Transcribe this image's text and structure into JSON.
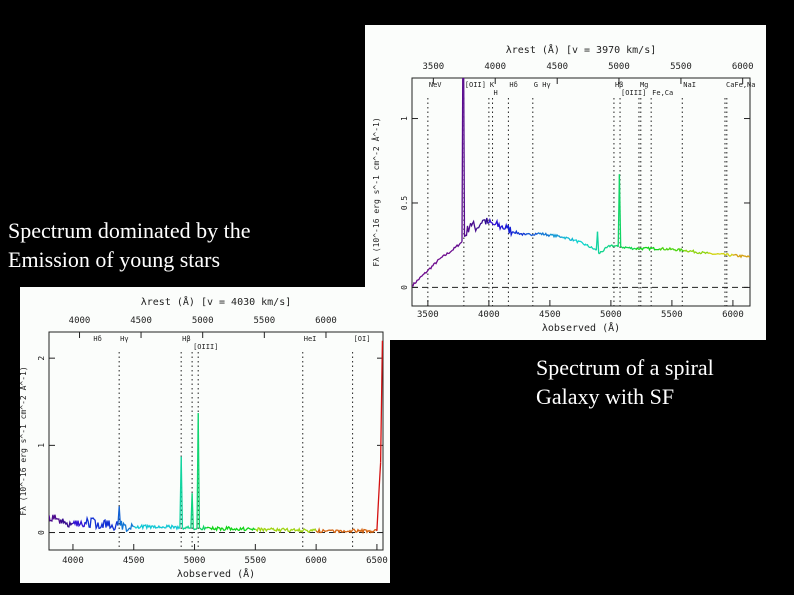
{
  "captions": {
    "top_left": [
      "Spectrum dominated by the",
      "Emission of young stars"
    ],
    "bottom_right": [
      "Spectrum of a spiral",
      "Galaxy with SF"
    ]
  },
  "chart_data": [
    {
      "type": "line",
      "title": "λrest (Å) [v = 3970 km/s]",
      "xlabel": "λobserved (Å)",
      "ylabel": "Fλ (10^-16 erg s^-1 cm^-2 Å^-1)",
      "xlim": [
        3370,
        6140
      ],
      "ylim": [
        -0.11,
        1.24
      ],
      "x_ticks": [
        "3500",
        "4000",
        "4500",
        "5000",
        "5500",
        "6000"
      ],
      "x_tick_values": [
        3500,
        4000,
        4500,
        5000,
        5500,
        6000
      ],
      "top_ticks": [
        "3500",
        "4000",
        "4500",
        "5000",
        "5500",
        "6000"
      ],
      "top_tick_values": [
        3545,
        4052,
        4560,
        5066,
        5574,
        6080
      ],
      "y_ticks": [
        "0",
        "0.5",
        "1"
      ],
      "y_tick_values": [
        0,
        0.5,
        1
      ],
      "zero_line": true,
      "lines": [
        {
          "x": 3500,
          "label": "NeV"
        },
        {
          "x": 3795,
          "label": "[OII]"
        },
        {
          "x": 4000,
          "label": "K"
        },
        {
          "x": 4030,
          "label": "H"
        },
        {
          "x": 4160,
          "label": "Hδ"
        },
        {
          "x": 4360,
          "label": "G Hγ"
        },
        {
          "x": 5025,
          "label": "Hβ"
        },
        {
          "x": 5075,
          "label": "[OIII]"
        },
        {
          "x": 5230,
          "label": "Mg"
        },
        {
          "x": 5245,
          "label": ""
        },
        {
          "x": 5330,
          "label": "Fe,Ca"
        },
        {
          "x": 5585,
          "label": "NaI"
        },
        {
          "x": 5935,
          "label": "CaFe,Na"
        },
        {
          "x": 5950,
          "label": ""
        }
      ],
      "x": [
        3370,
        3500,
        3600,
        3700,
        3780,
        3790,
        3800,
        3850,
        3900,
        3950,
        4000,
        4050,
        4100,
        4150,
        4200,
        4300,
        4400,
        4500,
        4600,
        4700,
        4800,
        4880,
        4890,
        4900,
        5000,
        5060,
        5070,
        5080,
        5200,
        5400,
        5600,
        5800,
        6000,
        6140
      ],
      "y": [
        0.01,
        0.1,
        0.17,
        0.22,
        0.27,
        1.85,
        0.3,
        0.38,
        0.35,
        0.4,
        0.38,
        0.37,
        0.36,
        0.35,
        0.33,
        0.31,
        0.32,
        0.31,
        0.3,
        0.28,
        0.25,
        0.22,
        0.33,
        0.2,
        0.25,
        0.24,
        0.67,
        0.24,
        0.23,
        0.23,
        0.22,
        0.2,
        0.19,
        0.18
      ]
    },
    {
      "type": "line",
      "title": "λrest (Å) [v = 4030 km/s]",
      "xlabel": "λobserved (Å)",
      "ylabel": "Fλ (10^-16 erg s^-1 cm^-2 Å^-1)",
      "xlim": [
        3803,
        6550
      ],
      "ylim": [
        -0.2,
        2.3
      ],
      "x_ticks": [
        "4000",
        "4500",
        "5000",
        "5500",
        "6000",
        "6500"
      ],
      "x_tick_values": [
        4000,
        4500,
        5000,
        5500,
        6000,
        6500
      ],
      "top_ticks": [
        "4000",
        "4500",
        "5000",
        "5500",
        "6000"
      ],
      "top_tick_values": [
        4054,
        4560,
        5067,
        5574,
        6081
      ],
      "y_ticks": [
        "0",
        "1",
        "2"
      ],
      "y_tick_values": [
        0,
        1,
        2
      ],
      "zero_line": true,
      "lines": [
        {
          "x": 4160,
          "label": "Hδ",
          "dotted": false
        },
        {
          "x": 4380,
          "label": "Hγ"
        },
        {
          "x": 4890,
          "label": "Hβ"
        },
        {
          "x": 4980,
          "label": "[OIII]"
        },
        {
          "x": 5030,
          "label": ""
        },
        {
          "x": 5890,
          "label": "HeI"
        },
        {
          "x": 6300,
          "label": "[OI]"
        }
      ],
      "x": [
        3803,
        3900,
        4000,
        4100,
        4370,
        4380,
        4390,
        4500,
        4880,
        4890,
        4900,
        4970,
        4980,
        4990,
        5020,
        5030,
        5040,
        5100,
        5500,
        6000,
        6500,
        6530,
        6545
      ],
      "y": [
        0.2,
        0.15,
        0.1,
        0.12,
        0.08,
        0.3,
        0.08,
        0.07,
        0.06,
        0.87,
        0.06,
        0.05,
        0.45,
        0.05,
        0.05,
        1.37,
        0.05,
        0.05,
        0.04,
        0.02,
        0.02,
        0.8,
        2.2
      ]
    }
  ]
}
